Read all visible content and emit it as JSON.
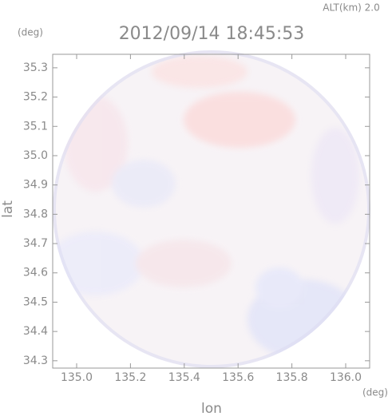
{
  "chart_data": {
    "type": "image",
    "title": "2012/09/14 18:45:53",
    "annotation": "ALT(km) 2.0",
    "x_label": "lon",
    "y_label": "lat",
    "x_unit": "(deg)",
    "y_unit": "(deg)",
    "xlim": [
      134.911,
      136.089
    ],
    "ylim": [
      34.275,
      35.346
    ],
    "xticks": [
      {
        "value": 135.0,
        "label": "135.0"
      },
      135.2,
      135.4,
      135.6,
      135.8,
      {
        "value": 136.0,
        "label": "136.0"
      }
    ],
    "yticks": [
      35.3,
      35.2,
      35.1,
      {
        "value": 35.0,
        "label": "35.0"
      },
      34.9,
      34.8,
      34.7,
      34.6,
      34.5,
      34.4,
      34.3
    ]
  }
}
